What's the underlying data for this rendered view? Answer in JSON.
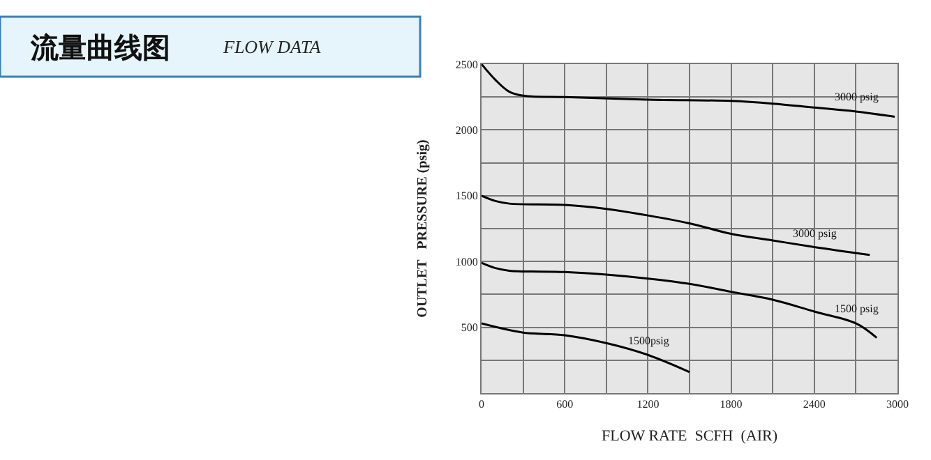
{
  "chart_data": {
    "type": "line",
    "title": "流量曲线图",
    "subtitle": "FLOW DATA",
    "xlabel": "FLOW RATE  SCFH  (AIR)",
    "ylabel": "OUTLET   PRESSURE (psig)",
    "xlim": [
      0,
      3000
    ],
    "ylim": [
      0,
      2500
    ],
    "xticks": [
      0,
      {
        "value": 300,
        "label": null
      },
      600,
      {
        "value": 900,
        "label": null
      },
      1200,
      {
        "value": 1500,
        "label": null
      },
      1800,
      {
        "value": 2100,
        "label": null
      },
      2400,
      {
        "value": 2700,
        "label": null
      },
      3000
    ],
    "yticks": [
      {
        "value": 250,
        "label": null
      },
      500,
      {
        "value": 750,
        "label": null
      },
      1000,
      {
        "value": 1250,
        "label": null
      },
      1500,
      {
        "value": 1750,
        "label": null
      },
      2000,
      {
        "value": 2250,
        "label": null
      },
      2500
    ],
    "grid": true,
    "legend": false,
    "marker": "none",
    "line_style": "solid",
    "series": [
      {
        "name": "3000 psig",
        "color": "#000000",
        "x": [
          0,
          100,
          200,
          300,
          600,
          1200,
          1800,
          2100,
          2400,
          2700,
          2980
        ],
        "values": [
          2500,
          2380,
          2290,
          2260,
          2250,
          2230,
          2220,
          2200,
          2170,
          2140,
          2100
        ]
      },
      {
        "name": "3000 psig",
        "color": "#000000",
        "x": [
          0,
          100,
          200,
          600,
          900,
          1200,
          1500,
          1800,
          2100,
          2400,
          2800
        ],
        "values": [
          1500,
          1460,
          1440,
          1430,
          1400,
          1350,
          1290,
          1210,
          1160,
          1110,
          1050
        ]
      },
      {
        "name": "1500 psig",
        "color": "#000000",
        "x": [
          0,
          100,
          200,
          600,
          900,
          1200,
          1500,
          1800,
          2100,
          2400,
          2700,
          2850
        ],
        "values": [
          990,
          950,
          930,
          920,
          900,
          870,
          830,
          770,
          710,
          620,
          530,
          420
        ]
      },
      {
        "name": "1500psig",
        "color": "#000000",
        "x": [
          0,
          300,
          600,
          900,
          1200,
          1500
        ],
        "values": [
          530,
          460,
          440,
          380,
          290,
          160
        ]
      }
    ]
  }
}
